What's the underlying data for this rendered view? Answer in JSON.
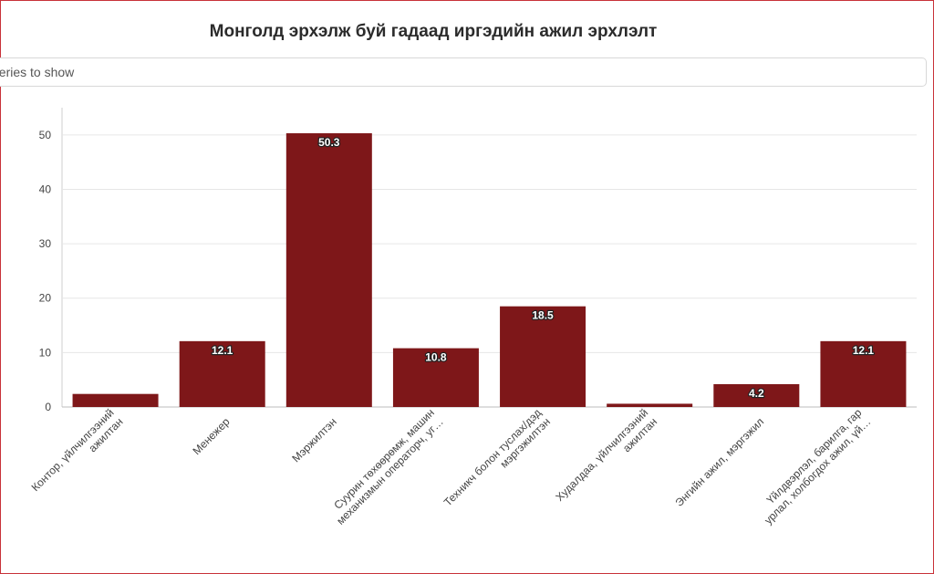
{
  "chart_data": {
    "type": "bar",
    "title": "Монголд эрхэлж буй гадаад иргэдийн ажил эрхлэлт",
    "categories": [
      [
        "Контор, үйлчилгээний",
        "ажилтан"
      ],
      [
        "Менежер"
      ],
      [
        "Мэржилтэн"
      ],
      [
        "Суурин төхөөрөмж, машин",
        "механизмын операторч, уг…"
      ],
      [
        "Техникч болон туслах/дэд",
        "мэргэжилтэн"
      ],
      [
        "Худалдаа, үйлчилгээний",
        "ажилтан"
      ],
      [
        "Энгийн ажил, мэргэжил"
      ],
      [
        "Үйлдвэрлэл, барилга, гар",
        "урлал, холбогдох ажил, үй…"
      ]
    ],
    "values": [
      2.4,
      12.1,
      50.3,
      10.8,
      18.5,
      0.6,
      4.2,
      12.1
    ],
    "data_labels": [
      "",
      "12.1",
      "50.3",
      "10.8",
      "18.5",
      "",
      "4.2",
      "12.1"
    ],
    "yticks": [
      "0",
      "10",
      "20",
      "30",
      "40",
      "50"
    ],
    "ylim": [
      0,
      55
    ],
    "xlabel": "",
    "ylabel": "",
    "grid": true,
    "bar_color": "#7e1719"
  },
  "selector": {
    "placeholder_fragment": "Select series to show"
  }
}
